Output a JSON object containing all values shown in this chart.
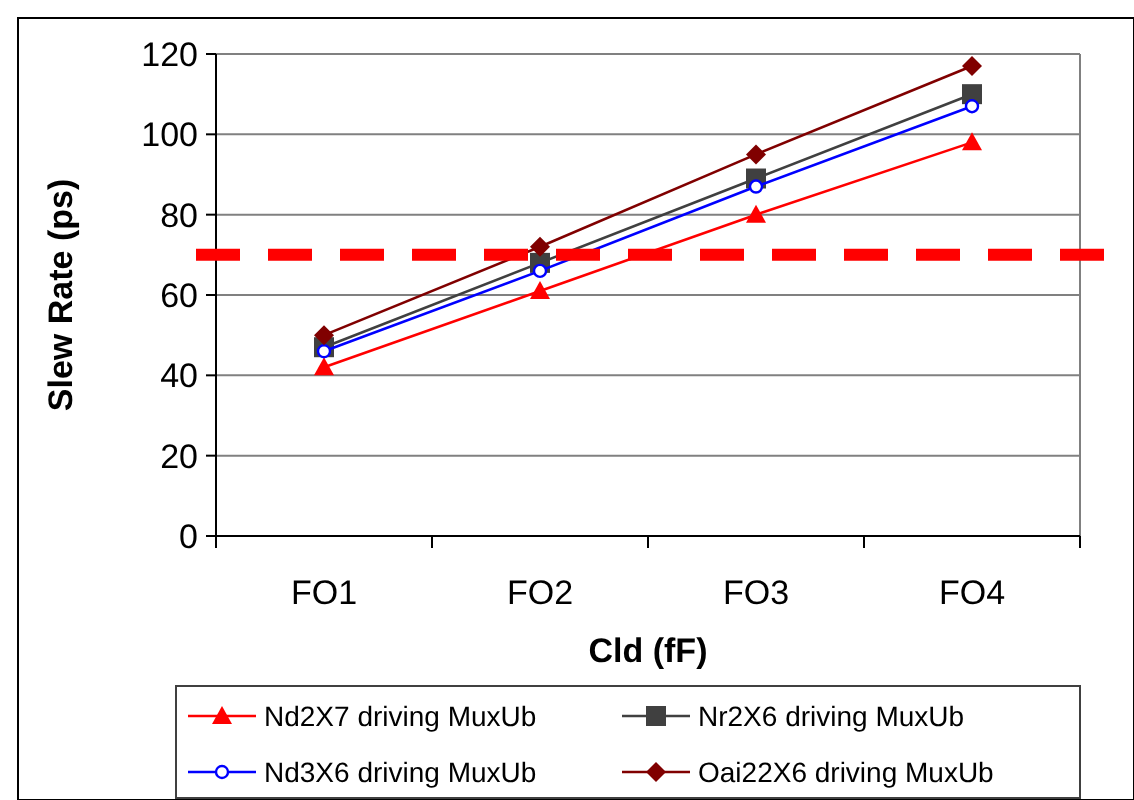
{
  "chart_data": {
    "type": "line",
    "xlabel": "Cld (fF)",
    "ylabel": "Slew Rate (ps)",
    "categories": [
      "FO1",
      "FO2",
      "FO3",
      "FO4"
    ],
    "ylim": [
      0,
      120
    ],
    "yticks": [
      0,
      20,
      40,
      60,
      80,
      100,
      120
    ],
    "grid": "y",
    "legend": "bottom",
    "series": [
      {
        "name": "Nd2X7 driving MuxUb",
        "color": "#ff0000",
        "marker": "triangle",
        "values": [
          42,
          61,
          80,
          98
        ]
      },
      {
        "name": "Nr2X6 driving MuxUb",
        "color": "#404040",
        "marker": "square",
        "values": [
          47,
          68,
          89,
          110
        ]
      },
      {
        "name": "Nd3X6 driving MuxUb",
        "color": "#0000ff",
        "marker": "circle",
        "values": [
          46,
          66,
          87,
          107
        ]
      },
      {
        "name": "Oai22X6 driving MuxUb",
        "color": "#800000",
        "marker": "diamond",
        "values": [
          50,
          72,
          95,
          117
        ]
      }
    ],
    "ref_lines": [
      {
        "axis": "y",
        "value": 70,
        "color": "#ff0000",
        "line_style": "dashed"
      }
    ]
  }
}
